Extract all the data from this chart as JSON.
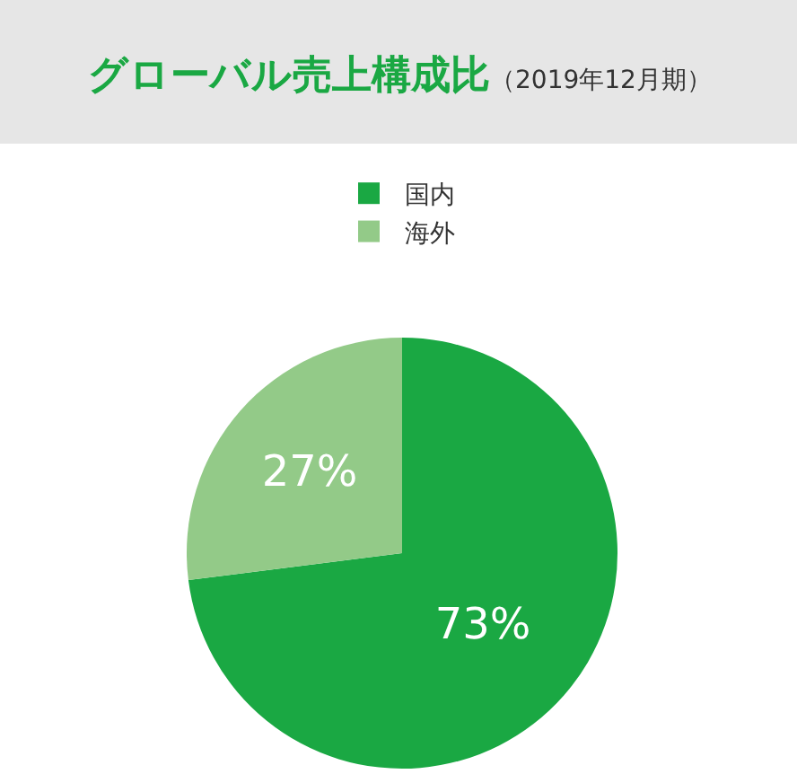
{
  "chart_data": {
    "type": "pie",
    "title": "グローバル売上構成比",
    "subtitle": "（2019年12月期）",
    "categories": [
      "国内",
      "海外"
    ],
    "values": [
      73,
      27
    ],
    "colors": [
      "#1aa843",
      "#93ca88"
    ],
    "value_labels": [
      "73%",
      "27%"
    ],
    "legend": "top"
  }
}
